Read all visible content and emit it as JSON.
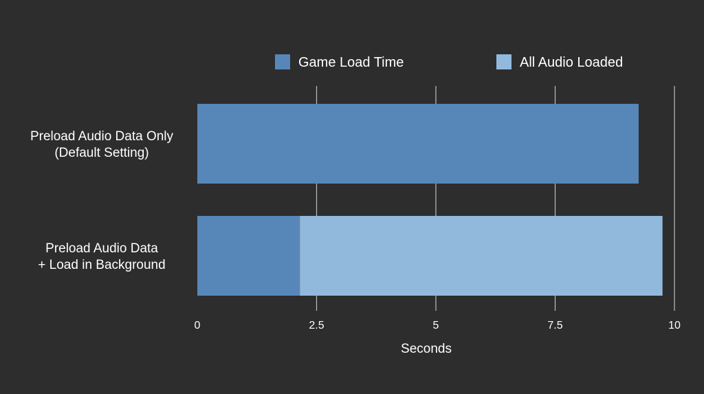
{
  "chart_data": {
    "type": "bar",
    "orientation": "horizontal",
    "stacked": true,
    "categories": [
      [
        "Preload Audio Data Only",
        "(Default Setting)"
      ],
      [
        "Preload Audio Data",
        "+ Load in Background"
      ]
    ],
    "series": [
      {
        "name": "Game Load Time",
        "color": "#5787b8",
        "values": [
          9.25,
          2.15
        ]
      },
      {
        "name": "All Audio Loaded",
        "color": "#91b9dc",
        "values": [
          0,
          7.6
        ]
      }
    ],
    "xlabel": "Seconds",
    "ylabel": "",
    "xlim": [
      0,
      10
    ],
    "xticks": [
      "0",
      "2.5",
      "5",
      "7.5",
      "10"
    ],
    "grid": true,
    "legend_position": "top"
  },
  "colors": {
    "background": "#2d2d2d",
    "gridline": "#bdbdbd",
    "text": "#ffffff"
  }
}
